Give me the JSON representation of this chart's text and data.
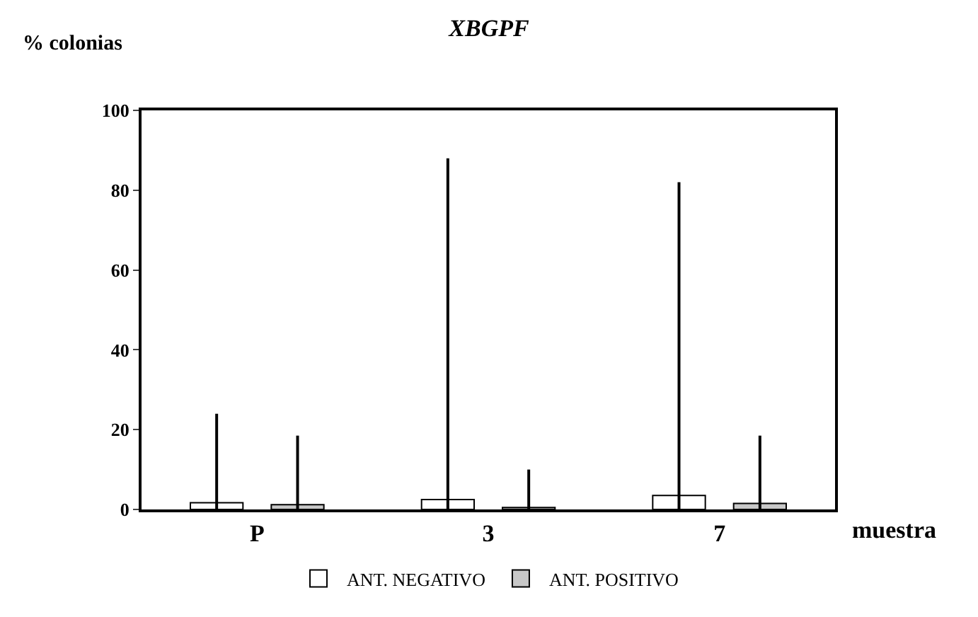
{
  "chart_data": {
    "type": "bar",
    "title": "XBGPF",
    "ylabel": "% colonias",
    "xlabel": "muestra",
    "categories": [
      "P",
      "3",
      "7"
    ],
    "series": [
      {
        "name": "ANT. NEGATIVO",
        "color": "#ffffff",
        "values": [
          1.7,
          2.5,
          3.5
        ],
        "errors": [
          [
            0,
            24
          ],
          [
            0,
            88
          ],
          [
            0,
            82
          ]
        ]
      },
      {
        "name": "ANT. POSITIVO",
        "color": "#c8c8c8",
        "values": [
          1.2,
          0.5,
          1.5
        ],
        "errors": [
          [
            0,
            18.5
          ],
          [
            0,
            10
          ],
          [
            0,
            18.5
          ]
        ]
      }
    ],
    "ylim": [
      0,
      100
    ],
    "yticks": [
      0,
      20,
      40,
      60,
      80,
      100
    ],
    "legend": "bottom"
  }
}
